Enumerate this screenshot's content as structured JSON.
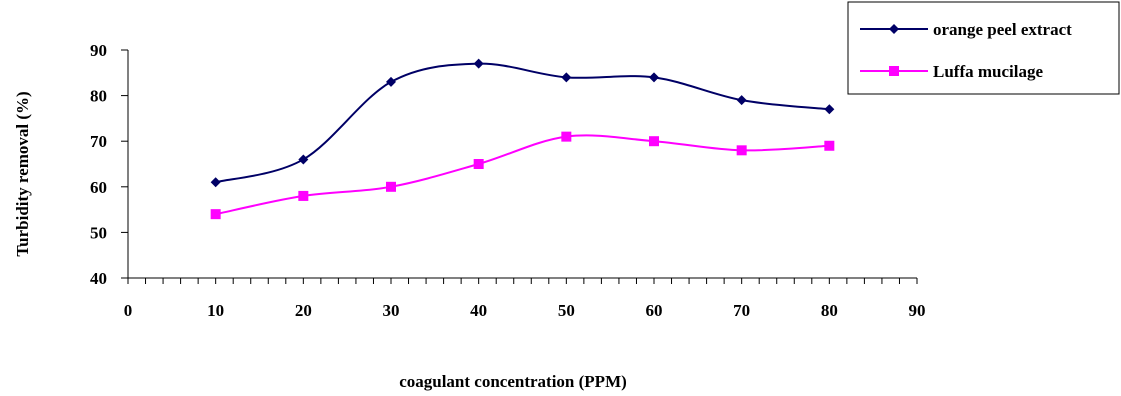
{
  "chart_data": {
    "type": "line",
    "title": "",
    "xlabel": "coagulant concentration (PPM)",
    "ylabel": "Turbidity removal (%)",
    "xlim": [
      0,
      90
    ],
    "ylim": [
      40,
      90
    ],
    "xticks": [
      0,
      10,
      20,
      30,
      40,
      50,
      60,
      70,
      80,
      90
    ],
    "yticks": [
      40,
      50,
      60,
      70,
      80,
      90
    ],
    "grid": false,
    "legend_position": "top-right",
    "x": [
      10,
      20,
      30,
      40,
      50,
      60,
      70,
      80
    ],
    "series": [
      {
        "name": "orange peel extract",
        "color": "#000066",
        "marker": "diamond",
        "values": [
          61,
          66,
          83,
          87,
          84,
          84,
          79,
          77
        ]
      },
      {
        "name": "Luffa mucilage",
        "color": "#ff00ff",
        "marker": "square",
        "values": [
          54,
          58,
          60,
          65,
          71,
          70,
          68,
          69
        ]
      }
    ]
  }
}
